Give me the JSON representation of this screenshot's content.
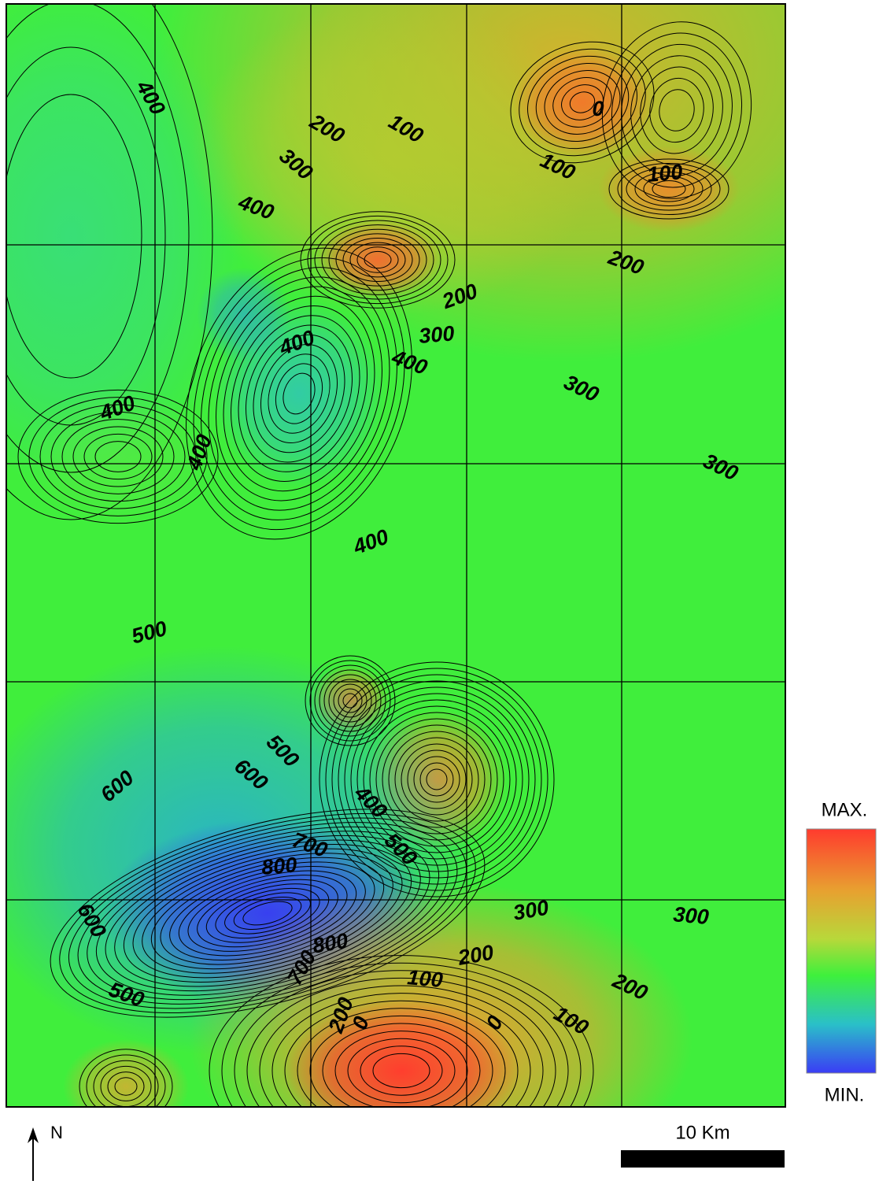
{
  "map": {
    "contour_labels": [
      400,
      200,
      100,
      300,
      400,
      0,
      100,
      100,
      200,
      200,
      300,
      400,
      400,
      300,
      400,
      400,
      300,
      400,
      500,
      500,
      600,
      600,
      400,
      500,
      700,
      800,
      300,
      300,
      600,
      800,
      200,
      700,
      100,
      200,
      500,
      200,
      0,
      0,
      100
    ],
    "legend": {
      "max_label": "MAX.",
      "min_label": "MIN."
    },
    "north_label": "N",
    "scale_label": "10 Km"
  }
}
